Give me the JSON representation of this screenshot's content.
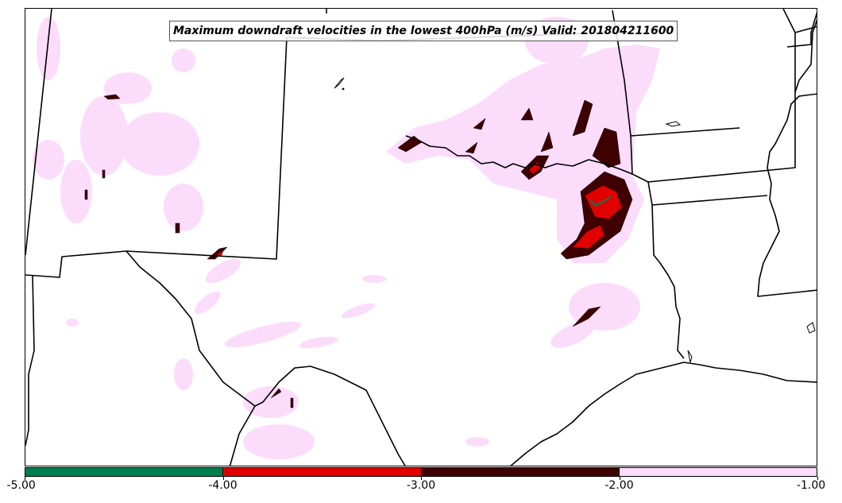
{
  "title": "Maximum downdraft velocities in the lowest 400hPa (m/s) Valid: 201804211600",
  "colorbar": {
    "bins": [
      {
        "from": -5.0,
        "to": -4.0,
        "color": "#007f4f"
      },
      {
        "from": -4.0,
        "to": -3.0,
        "color": "#e00000"
      },
      {
        "from": -3.0,
        "to": -2.0,
        "color": "#3f0000"
      },
      {
        "from": -2.0,
        "to": -1.0,
        "color": "#fbdcfb"
      }
    ],
    "ticks": [
      "-5.00",
      "-4.00",
      "-3.00",
      "-2.00",
      "-1.00"
    ]
  },
  "colors": {
    "light": "#fbdcfb",
    "dark": "#3f0000",
    "red": "#e00000",
    "green": "#007f4f",
    "border": "#000000"
  }
}
